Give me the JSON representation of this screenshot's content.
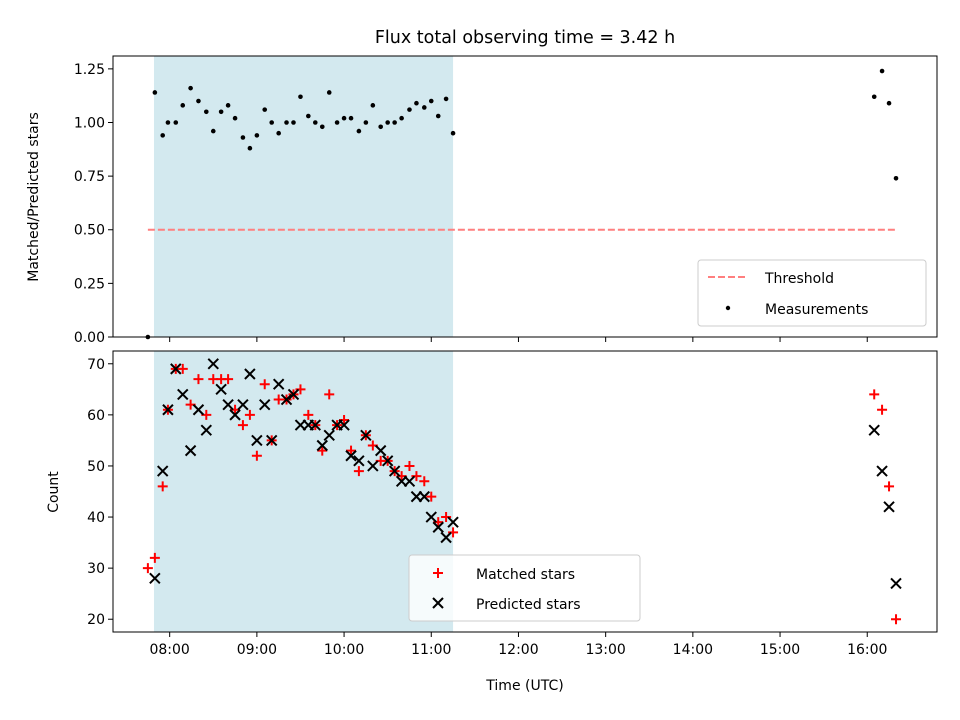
{
  "chart_data": [
    {
      "type": "scatter",
      "title": "Flux total observing time = 3.42 h",
      "xlabel": "",
      "ylabel": "Matched/Predicted stars",
      "x_unit": "hours UTC",
      "xlim": [
        7.35,
        16.8
      ],
      "ylim": [
        0.0,
        1.31
      ],
      "yticks": [
        0.0,
        0.25,
        0.5,
        0.75,
        1.0,
        1.25
      ],
      "ytick_labels": [
        "0.00",
        "0.25",
        "0.50",
        "0.75",
        "1.00",
        "1.25"
      ],
      "shaded_span": [
        7.82,
        11.25
      ],
      "shade_color": "#d3e9ef",
      "threshold": {
        "label": "Threshold",
        "y": 0.5,
        "x_range": [
          7.75,
          16.32
        ],
        "color": "#ff7f7f"
      },
      "legend_position": "lower-right",
      "series": [
        {
          "name": "Measurements",
          "color": "#000000",
          "marker": "dot",
          "x": [
            7.75,
            7.83,
            7.92,
            7.98,
            8.07,
            8.15,
            8.24,
            8.33,
            8.42,
            8.5,
            8.59,
            8.67,
            8.75,
            8.84,
            8.92,
            9.0,
            9.09,
            9.17,
            9.25,
            9.34,
            9.42,
            9.5,
            9.59,
            9.67,
            9.75,
            9.83,
            9.92,
            10.0,
            10.08,
            10.17,
            10.25,
            10.33,
            10.42,
            10.5,
            10.58,
            10.66,
            10.75,
            10.83,
            10.92,
            11.0,
            11.08,
            11.17,
            11.25,
            16.08,
            16.17,
            16.25,
            16.33
          ],
          "y": [
            0.0,
            1.14,
            0.94,
            1.0,
            1.0,
            1.08,
            1.16,
            1.1,
            1.05,
            0.96,
            1.05,
            1.08,
            1.02,
            0.93,
            0.88,
            0.94,
            1.06,
            1.0,
            0.95,
            1.0,
            1.0,
            1.12,
            1.03,
            1.0,
            0.98,
            1.14,
            1.0,
            1.02,
            1.02,
            0.96,
            1.0,
            1.08,
            0.98,
            1.0,
            1.0,
            1.02,
            1.06,
            1.09,
            1.07,
            1.1,
            1.03,
            1.11,
            0.95,
            1.12,
            1.24,
            1.09,
            0.74
          ]
        }
      ],
      "legend": [
        "Threshold",
        "Measurements"
      ]
    },
    {
      "type": "scatter",
      "title": "",
      "xlabel": "Time (UTC)",
      "ylabel": "Count",
      "x_unit": "hours UTC",
      "xlim": [
        7.35,
        16.8
      ],
      "ylim": [
        17.5,
        72.5
      ],
      "yticks": [
        20,
        30,
        40,
        50,
        60,
        70
      ],
      "ytick_labels": [
        "20",
        "30",
        "40",
        "50",
        "60",
        "70"
      ],
      "xticks": [
        8,
        9,
        10,
        11,
        12,
        13,
        14,
        15,
        16
      ],
      "xtick_labels": [
        "08:00",
        "09:00",
        "10:00",
        "11:00",
        "12:00",
        "13:00",
        "14:00",
        "15:00",
        "16:00"
      ],
      "shaded_span": [
        7.82,
        11.25
      ],
      "shade_color": "#d3e9ef",
      "legend_position": "lower-center",
      "series": [
        {
          "name": "Matched stars",
          "color": "#ff0000",
          "marker": "plus",
          "x": [
            7.75,
            7.83,
            7.92,
            7.98,
            8.07,
            8.15,
            8.24,
            8.33,
            8.42,
            8.5,
            8.59,
            8.67,
            8.75,
            8.84,
            8.92,
            9.0,
            9.09,
            9.17,
            9.25,
            9.34,
            9.42,
            9.5,
            9.59,
            9.67,
            9.75,
            9.83,
            9.92,
            10.0,
            10.08,
            10.17,
            10.25,
            10.33,
            10.42,
            10.5,
            10.58,
            10.66,
            10.75,
            10.83,
            10.92,
            11.0,
            11.08,
            11.17,
            11.25,
            16.08,
            16.17,
            16.25,
            16.33
          ],
          "y": [
            30,
            32,
            46,
            61,
            69,
            69,
            62,
            67,
            60,
            67,
            67,
            67,
            61,
            58,
            60,
            52,
            66,
            55,
            63,
            63,
            64,
            65,
            60,
            58,
            53,
            64,
            58,
            59,
            53,
            49,
            56,
            54,
            51,
            51,
            49,
            48,
            50,
            48,
            47,
            44,
            39,
            40,
            37,
            64,
            61,
            46,
            20
          ]
        },
        {
          "name": "Predicted stars",
          "color": "#000000",
          "marker": "x",
          "x": [
            7.83,
            7.92,
            7.98,
            8.07,
            8.15,
            8.24,
            8.33,
            8.42,
            8.5,
            8.59,
            8.67,
            8.75,
            8.84,
            8.92,
            9.0,
            9.09,
            9.17,
            9.25,
            9.34,
            9.42,
            9.5,
            9.59,
            9.67,
            9.75,
            9.83,
            9.92,
            10.0,
            10.08,
            10.17,
            10.25,
            10.33,
            10.42,
            10.5,
            10.58,
            10.66,
            10.75,
            10.83,
            10.92,
            11.0,
            11.08,
            11.17,
            11.25,
            16.08,
            16.17,
            16.25,
            16.33
          ],
          "y": [
            28,
            49,
            61,
            69,
            64,
            53,
            61,
            57,
            70,
            65,
            62,
            60,
            62,
            68,
            55,
            62,
            55,
            66,
            63,
            64,
            58,
            58,
            58,
            54,
            56,
            58,
            58,
            52,
            51,
            56,
            50,
            53,
            51,
            49,
            47,
            47,
            44,
            44,
            40,
            38,
            36,
            39,
            57,
            49,
            42,
            27
          ]
        }
      ],
      "legend": [
        "Matched stars",
        "Predicted stars"
      ]
    }
  ]
}
